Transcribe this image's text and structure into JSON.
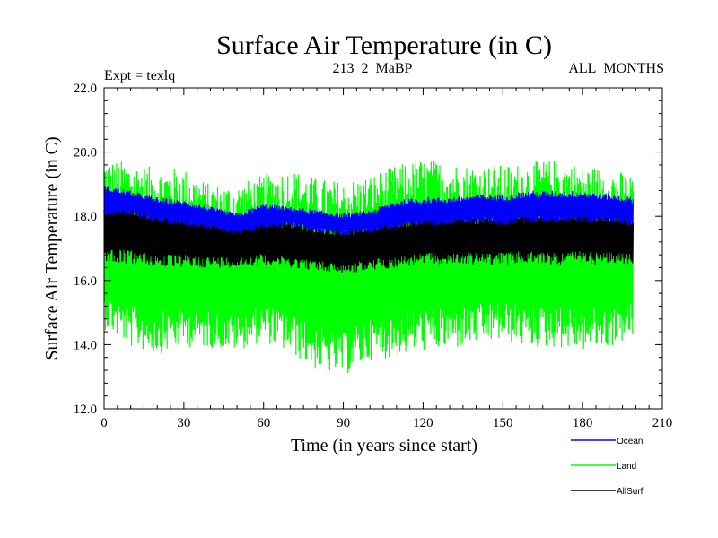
{
  "chart_data": {
    "type": "line",
    "title": "Surface Air Temperature (in C)",
    "subtitle_left": "Expt = texlq",
    "subtitle_center": "213_2_MaBP",
    "subtitle_right": "ALL_MONTHS",
    "xlabel": "Time (in years since start)",
    "ylabel": "Surface Air Temperature (in C)",
    "xlim": [
      0,
      210
    ],
    "ylim": [
      12.0,
      22.0
    ],
    "x_ticks": [
      0,
      30,
      60,
      90,
      120,
      150,
      180,
      210
    ],
    "x_tick_labels": [
      "0",
      "30",
      "60",
      "90",
      "120",
      "150",
      "180",
      "210"
    ],
    "y_ticks": [
      12.0,
      14.0,
      16.0,
      18.0,
      20.0,
      22.0
    ],
    "y_tick_labels": [
      "12.0",
      "14.0",
      "16.0",
      "18.0",
      "20.0",
      "22.0"
    ],
    "legend": [
      {
        "name": "Ocean",
        "color": "#0000ff"
      },
      {
        "name": "Land",
        "color": "#00ff00"
      },
      {
        "name": "AllSurf",
        "color": "#000000"
      }
    ],
    "series": [
      {
        "name": "Land",
        "color": "#00ff00",
        "x": [
          0,
          10,
          20,
          30,
          40,
          50,
          60,
          70,
          80,
          90,
          100,
          110,
          120,
          130,
          140,
          150,
          160,
          170,
          180,
          190,
          199
        ],
        "max": [
          19.8,
          19.7,
          19.5,
          19.5,
          19.0,
          19.0,
          19.3,
          19.5,
          19.2,
          19.1,
          19.3,
          19.6,
          19.8,
          19.7,
          19.6,
          19.6,
          19.7,
          19.8,
          19.6,
          19.5,
          19.3
        ],
        "min": [
          14.5,
          13.9,
          13.7,
          13.9,
          13.9,
          13.8,
          14.1,
          13.7,
          13.2,
          13.0,
          13.5,
          13.6,
          13.8,
          13.8,
          14.0,
          14.1,
          13.9,
          13.9,
          13.8,
          13.9,
          14.2
        ]
      },
      {
        "name": "AllSurf",
        "color": "#000000",
        "x": [
          0,
          10,
          20,
          30,
          40,
          50,
          60,
          70,
          80,
          90,
          100,
          110,
          120,
          130,
          140,
          150,
          160,
          170,
          180,
          190,
          199
        ],
        "max": [
          18.6,
          18.5,
          18.3,
          18.2,
          18.0,
          17.9,
          18.0,
          18.0,
          17.8,
          17.7,
          17.9,
          18.0,
          18.1,
          18.2,
          18.1,
          18.2,
          18.3,
          18.3,
          18.3,
          18.2,
          18.1
        ],
        "min": [
          16.6,
          16.5,
          16.4,
          16.4,
          16.4,
          16.4,
          16.5,
          16.4,
          16.3,
          16.2,
          16.3,
          16.4,
          16.5,
          16.5,
          16.5,
          16.5,
          16.5,
          16.5,
          16.5,
          16.5,
          16.5
        ]
      },
      {
        "name": "Ocean",
        "color": "#0000ff",
        "x": [
          0,
          10,
          20,
          30,
          40,
          50,
          60,
          70,
          80,
          90,
          100,
          110,
          120,
          130,
          140,
          150,
          160,
          170,
          180,
          190,
          199
        ],
        "max": [
          19.0,
          18.8,
          18.6,
          18.5,
          18.3,
          18.1,
          18.4,
          18.3,
          18.2,
          18.1,
          18.2,
          18.5,
          18.6,
          18.6,
          18.7,
          18.7,
          18.8,
          18.8,
          18.8,
          18.7,
          18.6
        ],
        "min": [
          18.0,
          18.0,
          17.8,
          17.7,
          17.6,
          17.4,
          17.6,
          17.7,
          17.5,
          17.4,
          17.5,
          17.6,
          17.7,
          17.7,
          17.8,
          17.7,
          17.8,
          17.8,
          17.8,
          17.8,
          17.7
        ]
      }
    ]
  }
}
